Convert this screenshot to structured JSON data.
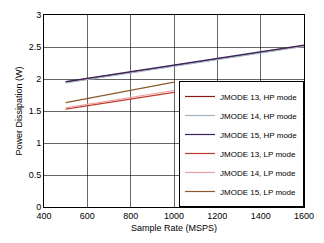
{
  "chart_data": {
    "type": "line",
    "x_label": "Sample Rate (MSPS)",
    "y_label": "Power Dissipation (W)",
    "xlim": [
      400,
      1600
    ],
    "xticks": [
      400,
      600,
      800,
      1000,
      1200,
      1400,
      1600
    ],
    "ylim": [
      0,
      3
    ],
    "yticks": [
      0,
      0.5,
      1,
      1.5,
      2,
      2.5,
      3
    ],
    "grid": true,
    "legend": "lower right",
    "series": [
      {
        "name": "JMODE 13, HP mode",
        "color": "#8b1a1a",
        "x": [
          500,
          1000,
          1600
        ],
        "values": [
          1.95,
          2.21,
          2.52
        ]
      },
      {
        "name": "JMODE 14, HP mode",
        "color": "#9fb3c8",
        "x": [
          500,
          1000,
          1600
        ],
        "values": [
          1.94,
          2.2,
          2.51
        ]
      },
      {
        "name": "JMODE 15, HP mode",
        "color": "#3b2358",
        "x": [
          500,
          1000,
          1600
        ],
        "values": [
          1.96,
          2.22,
          2.53
        ]
      },
      {
        "name": "JMODE 13, LP mode",
        "color": "#c0392b",
        "x": [
          500,
          750,
          1000
        ],
        "values": [
          1.53,
          1.66,
          1.79
        ]
      },
      {
        "name": "JMODE 14, LP mode",
        "color": "#e8a0a0",
        "x": [
          500,
          750,
          1000
        ],
        "values": [
          1.55,
          1.68,
          1.82
        ]
      },
      {
        "name": "JMODE 15, LP mode",
        "color": "#8b5a2b",
        "x": [
          500,
          750,
          1000
        ],
        "values": [
          1.63,
          1.79,
          1.95
        ]
      }
    ]
  }
}
